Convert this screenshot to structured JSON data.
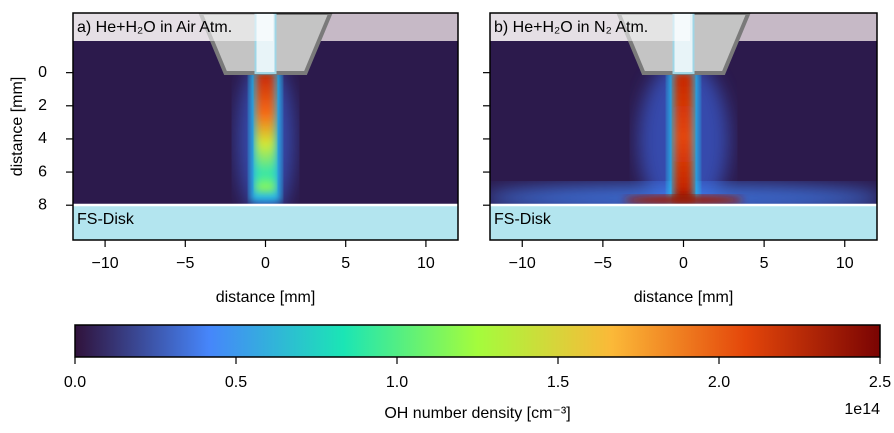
{
  "chart_data": [
    {
      "type": "heatmap",
      "title": "a) He+H₂O in Air Atm.",
      "xlabel": "distance [mm]",
      "ylabel": "distance [mm]",
      "region_label": "FS-Disk",
      "xlim": [
        -12,
        12
      ],
      "xticks": [
        {
          "value": -10,
          "label": "−10"
        },
        {
          "value": -5,
          "label": "−5"
        },
        0,
        5,
        10
      ],
      "ylim": [
        10.1,
        -3.6
      ],
      "yticks": [
        0,
        2,
        4,
        6,
        8
      ]
    },
    {
      "type": "heatmap",
      "title": "b)  He+H₂O in N₂ Atm.",
      "xlabel": "distance [mm]",
      "region_label": "FS-Disk",
      "xlim": [
        -12,
        12
      ],
      "xticks": [
        {
          "value": -10,
          "label": "−10"
        },
        {
          "value": -5,
          "label": "−5"
        },
        0,
        5,
        10
      ],
      "ylim": [
        10.1,
        -3.6
      ],
      "yticks": [
        0,
        2,
        4,
        6,
        8
      ]
    },
    {
      "type": "colorbar",
      "colormap": "turbo",
      "xlabel": "OH number density [cm⁻³]",
      "offset_label": "1e14",
      "xlim": [
        0,
        2.5
      ],
      "xticks": [
        {
          "value": 0,
          "label": "0.0"
        },
        {
          "value": 0.5,
          "label": "0.5"
        },
        {
          "value": 1,
          "label": "1.0"
        },
        {
          "value": 1.5,
          "label": "1.5"
        },
        {
          "value": 2,
          "label": "2.0"
        },
        {
          "value": 2.5,
          "label": "2.5"
        }
      ]
    }
  ]
}
